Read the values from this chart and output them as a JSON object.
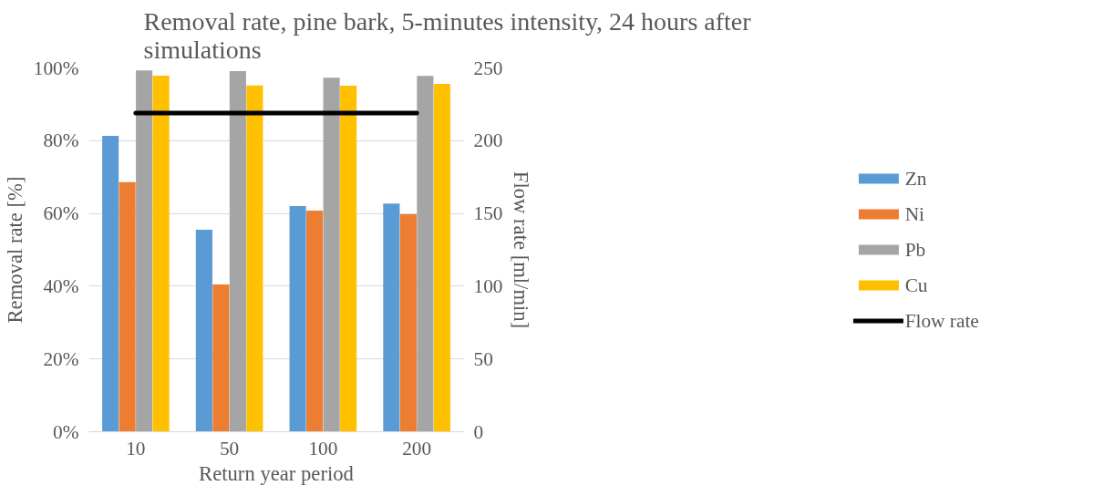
{
  "chart_data": {
    "type": "bar",
    "title": "Removal rate, pine bark, 5-minutes intensity, 24 hours after simulations",
    "xlabel": "Return year period",
    "ylabel": "Removal rate [%]",
    "y2label": "Flow rate [ml/min]",
    "categories": [
      "10",
      "50",
      "100",
      "200"
    ],
    "series": [
      {
        "name": "Zn",
        "color": "#5b9bd5",
        "values": [
          81.3,
          55.5,
          62.0,
          62.7
        ]
      },
      {
        "name": "Ni",
        "color": "#ed7d31",
        "values": [
          68.6,
          40.5,
          60.8,
          59.8
        ]
      },
      {
        "name": "Pb",
        "color": "#a5a5a5",
        "values": [
          99.3,
          99.1,
          97.3,
          97.8
        ]
      },
      {
        "name": "Cu",
        "color": "#ffc000",
        "values": [
          97.9,
          95.2,
          95.1,
          95.6
        ]
      },
      {
        "name": "Flow rate",
        "color": "#000000",
        "type": "line",
        "axis": "y2",
        "values": [
          219,
          219,
          219,
          219
        ]
      }
    ],
    "ylim": [
      0,
      100
    ],
    "yticks": [
      {
        "value": 0,
        "label": "0%"
      },
      {
        "value": 20,
        "label": "20%"
      },
      {
        "value": 40,
        "label": "40%"
      },
      {
        "value": 60,
        "label": "60%"
      },
      {
        "value": 80,
        "label": "80%"
      },
      {
        "value": 100,
        "label": "100%"
      }
    ],
    "y2lim": [
      0,
      250
    ],
    "y2ticks": [
      0,
      50,
      100,
      150,
      200,
      250
    ],
    "grid": "y",
    "legend": "right"
  }
}
